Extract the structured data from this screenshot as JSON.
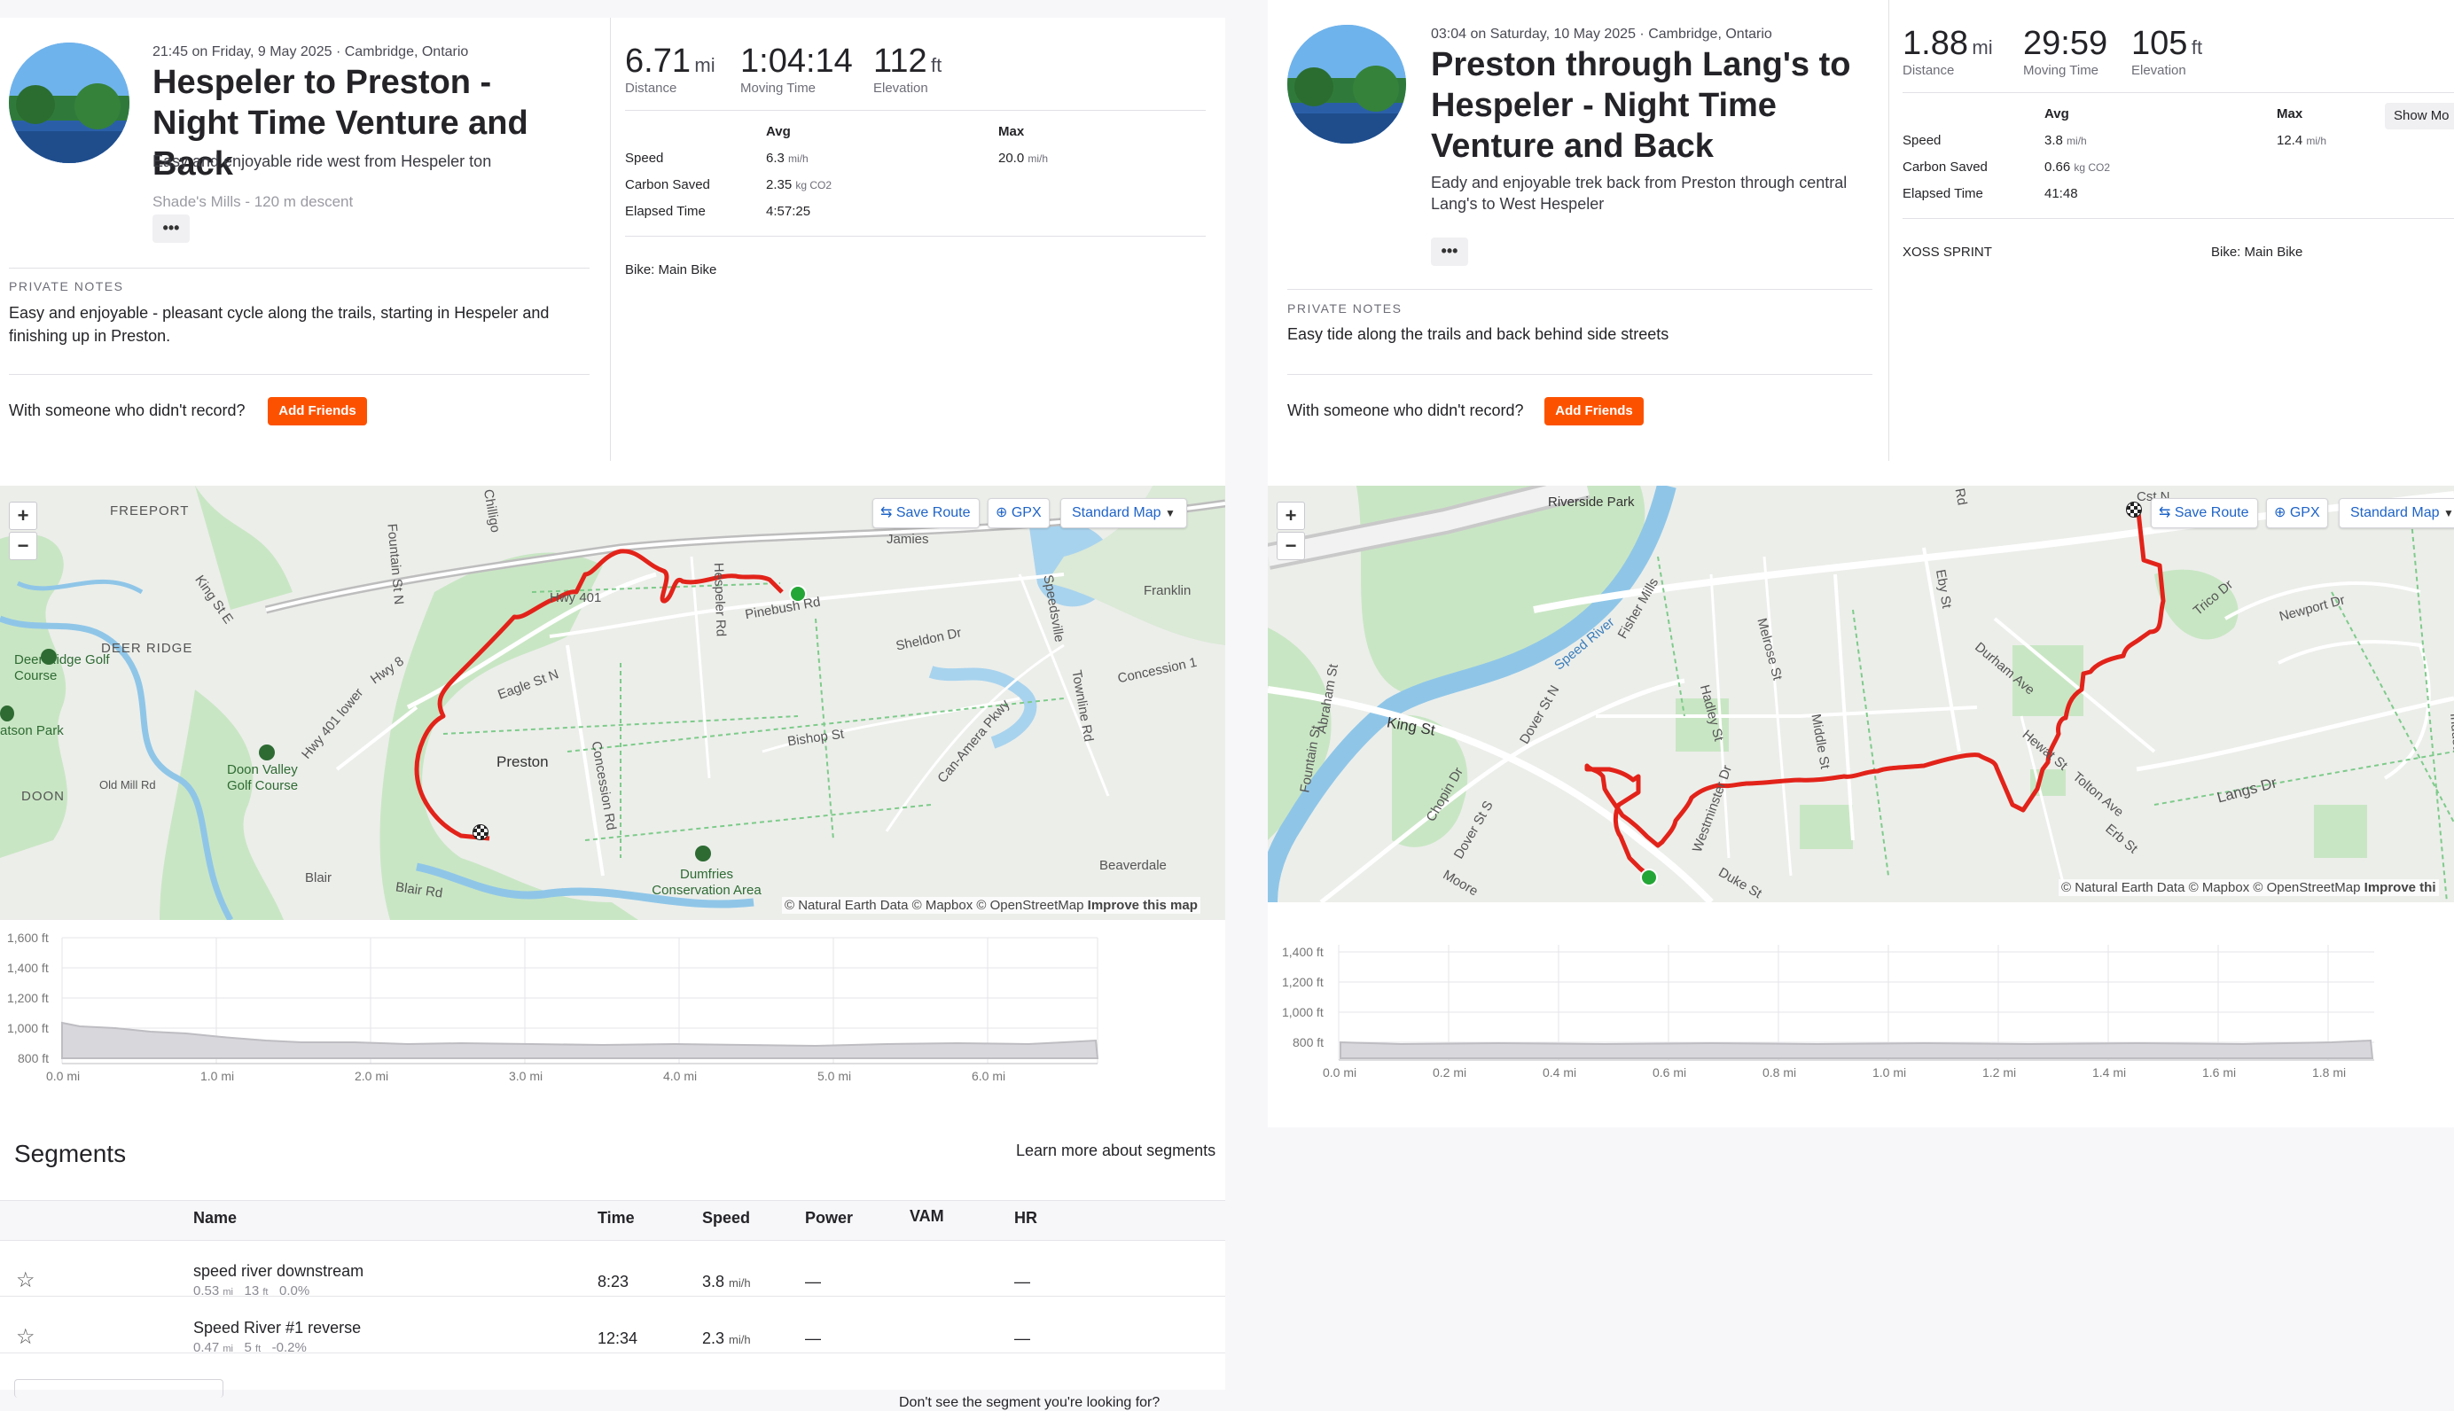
{
  "left": {
    "meta": "21:45 on Friday, 9 May 2025 · Cambridge, Ontario",
    "title": "Hespeler to Preston - Night Time Venture and Back",
    "description": "Easy and enjoyable ride west from Hespeler ton",
    "faded_text": "Shade's Mills - 120 m descent",
    "more_button": "•••",
    "private_notes_label": "PRIVATE NOTES",
    "private_notes": "Easy and enjoyable - pleasant cycle along the trails, starting in Hespeler and finishing up in Preston.",
    "with_someone": "With someone who didn't record?",
    "add_friends": "Add Friends",
    "stats": {
      "distance": {
        "value": "6.71",
        "unit": "mi",
        "label": "Distance"
      },
      "moving_time": {
        "value": "1:04:14",
        "label": "Moving Time"
      },
      "elevation": {
        "value": "112",
        "unit": "ft",
        "label": "Elevation"
      }
    },
    "table": {
      "avg_header": "Avg",
      "max_header": "Max",
      "rows": [
        {
          "label": "Speed",
          "avg": "6.3",
          "avg_unit": "mi/h",
          "max": "20.0",
          "max_unit": "mi/h"
        },
        {
          "label": "Carbon Saved",
          "avg": "2.35",
          "avg_unit": "kg CO2",
          "max": "",
          "max_unit": ""
        },
        {
          "label": "Elapsed Time",
          "avg": "4:57:25",
          "avg_unit": "",
          "max": "",
          "max_unit": ""
        }
      ]
    },
    "bike": "Bike: Main Bike",
    "map": {
      "save_route": "Save Route",
      "gpx": "GPX",
      "map_style": "Standard Map",
      "zoom_in": "+",
      "zoom_out": "−",
      "attribution": "© Natural Earth Data © Mapbox © OpenStreetMap",
      "improve": "Improve this map",
      "labels": [
        "FREEPORT",
        "DEER RIDGE",
        "Deer Ridge Golf Course",
        "atson Park",
        "Doon Valley Golf Course",
        "DOON",
        "Preston",
        "Dumfries Conservation Area",
        "Hwy 401",
        "Hwy 8",
        "Eagle St N",
        "Pinebush Rd",
        "Sheldon Dr",
        "Bishop St",
        "Can-Amera Pkwy",
        "Concession 1",
        "Townline Rd",
        "Fountain St N",
        "King St E",
        "Old Mill Rd",
        "Blair",
        "Blair Rd",
        "Concession Rd",
        "Hespeler Rd",
        "Jamies",
        "Speedsville",
        "Hwy 401 lower",
        "Franklin",
        "Chilligo",
        "Beaverdale"
      ]
    },
    "elevation_chart": {
      "y_ticks": [
        "1,600 ft",
        "1,400 ft",
        "1,200 ft",
        "1,000 ft",
        "800 ft"
      ],
      "x_ticks": [
        "0.0 mi",
        "1.0 mi",
        "2.0 mi",
        "3.0 mi",
        "4.0 mi",
        "5.0 mi",
        "6.0 mi"
      ]
    },
    "segments": {
      "title": "Segments",
      "learn_more": "Learn more about segments",
      "headers": {
        "name": "Name",
        "time": "Time",
        "speed": "Speed",
        "power": "Power",
        "vam": "VAM",
        "hr": "HR"
      },
      "rows": [
        {
          "name": "speed river downstream",
          "dist": "0.53",
          "dist_unit": "mi",
          "elev": "13",
          "elev_unit": "ft",
          "grade": "0.0%",
          "time": "8:23",
          "speed": "3.8",
          "speed_unit": "mi/h",
          "power": "—",
          "hr": "—"
        },
        {
          "name": "Speed River #1 reverse",
          "dist": "0.47",
          "dist_unit": "mi",
          "elev": "5",
          "elev_unit": "ft",
          "grade": "-0.2%",
          "time": "12:34",
          "speed": "2.3",
          "speed_unit": "mi/h",
          "power": "—",
          "hr": "—"
        }
      ],
      "footer": "Don't see the segment you're looking for?"
    }
  },
  "right": {
    "meta": "03:04 on Saturday, 10 May 2025 · Cambridge, Ontario",
    "title": "Preston through Lang's to Hespeler - Night Time Venture and Back",
    "description": "Eady and enjoyable trek back from Preston through central Lang's to West Hespeler",
    "more_button": "•••",
    "private_notes_label": "PRIVATE NOTES",
    "private_notes": "Easy tide along the trails and back behind side streets",
    "with_someone": "With someone who didn't record?",
    "add_friends": "Add Friends",
    "stats": {
      "distance": {
        "value": "1.88",
        "unit": "mi",
        "label": "Distance"
      },
      "moving_time": {
        "value": "29:59",
        "label": "Moving Time"
      },
      "elevation": {
        "value": "105",
        "unit": "ft",
        "label": "Elevation"
      }
    },
    "show_more": "Show Mo",
    "table": {
      "avg_header": "Avg",
      "max_header": "Max",
      "rows": [
        {
          "label": "Speed",
          "avg": "3.8",
          "avg_unit": "mi/h",
          "max": "12.4",
          "max_unit": "mi/h"
        },
        {
          "label": "Carbon Saved",
          "avg": "0.66",
          "avg_unit": "kg CO2",
          "max": "",
          "max_unit": ""
        },
        {
          "label": "Elapsed Time",
          "avg": "41:48",
          "avg_unit": "",
          "max": "",
          "max_unit": ""
        }
      ]
    },
    "device": "XOSS SPRINT",
    "bike": "Bike: Main Bike",
    "map": {
      "save_route": "Save Route",
      "gpx": "GPX",
      "map_style": "Standard Map",
      "zoom_in": "+",
      "zoom_out": "−",
      "attribution": "© Natural Earth Data © Mapbox © OpenStreetMap",
      "improve": "Improve thi",
      "labels": [
        "Riverside Park",
        "Speed River",
        "King St",
        "Abraham St",
        "Chopin Dr",
        "Dover St S",
        "Dover St N",
        "Hadley St",
        "Melrose St",
        "Middle St",
        "Westminster Dr",
        "Eby St",
        "Durham Ave",
        "Hewat St",
        "Tolton Ave",
        "Langs Dr",
        "Erb St",
        "Trico Dr",
        "Newport Dr",
        "Industrial Rd",
        "Duke St",
        "Moore",
        "Cst N",
        "Rd",
        "Fisher Mills",
        "Fountain St"
      ]
    },
    "elevation_chart": {
      "y_ticks": [
        "1,400 ft",
        "1,200 ft",
        "1,000 ft",
        "800 ft"
      ],
      "x_ticks": [
        "0.0 mi",
        "0.2 mi",
        "0.4 mi",
        "0.6 mi",
        "0.8 mi",
        "1.0 mi",
        "1.2 mi",
        "1.4 mi",
        "1.6 mi",
        "1.8 mi"
      ]
    }
  },
  "colors": {
    "brand": "#fc5200",
    "route": "#e2231a",
    "start": "#24a636",
    "park": "#c9e6c4",
    "water": "#a8d3ee"
  }
}
